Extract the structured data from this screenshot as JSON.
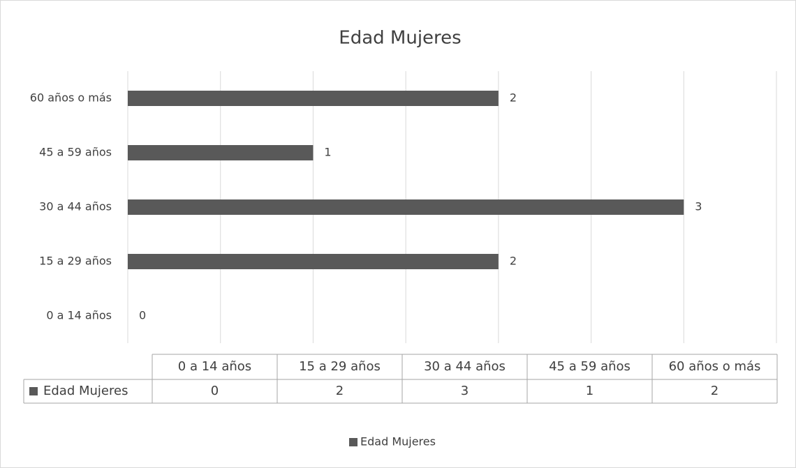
{
  "chart_data": {
    "type": "hbar",
    "title": "Edad Mujeres",
    "categories": [
      "0 a 14 años",
      "15 a 29 años",
      "30 a 44 años",
      "45 a 59 años",
      "60 años o más"
    ],
    "series": [
      {
        "name": "Edad Mujeres",
        "color": "#595959",
        "values": [
          0,
          2,
          3,
          1,
          2
        ]
      }
    ],
    "xlim": [
      0,
      3.5
    ],
    "xticks": [
      0,
      0.5,
      1,
      1.5,
      2,
      2.5,
      3,
      3.5
    ],
    "grid": true,
    "data_table": true,
    "legend": "bottom"
  }
}
